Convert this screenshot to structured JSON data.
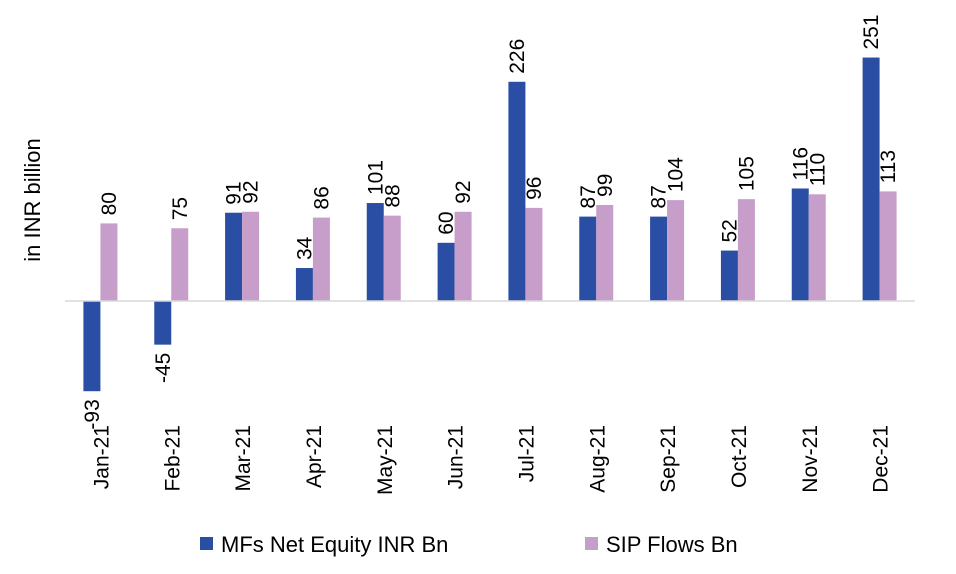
{
  "chart_data": {
    "type": "bar",
    "title": "",
    "xlabel": "",
    "ylabel": "in INR billion",
    "categories": [
      "Jan-21",
      "Feb-21",
      "Mar-21",
      "Apr-21",
      "May-21",
      "Jun-21",
      "Jul-21",
      "Aug-21",
      "Sep-21",
      "Oct-21",
      "Nov-21",
      "Dec-21"
    ],
    "series": [
      {
        "name": "MFs Net Equity INR Bn",
        "color": "#2a4ea3",
        "values": [
          -93,
          -45,
          91,
          34,
          101,
          60,
          226,
          87,
          87,
          52,
          116,
          251
        ]
      },
      {
        "name": "SIP Flows Bn",
        "color": "#c79ec9",
        "values": [
          80,
          75,
          92,
          86,
          88,
          92,
          96,
          99,
          104,
          105,
          110,
          113
        ]
      }
    ],
    "ylim": [
      -130,
      270
    ],
    "grid": false,
    "legend": "bottom"
  }
}
